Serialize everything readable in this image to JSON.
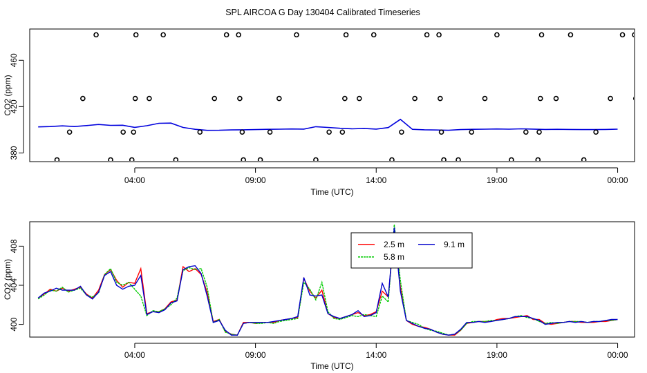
{
  "title": "SPL AIRCOA G  Day 130404  Calibrated Timeseries",
  "chart_data": [
    {
      "type": "scatter",
      "xlabel": "Time (UTC)",
      "ylabel": "CO2 (ppm)",
      "x_unit": "hours since 00:00 UTC (axis printed as clock time)",
      "xlim": [
        -0.35,
        24.7
      ],
      "ylim": [
        372.5,
        487
      ],
      "x_ticks": [
        {
          "value": 4,
          "label": "04:00"
        },
        {
          "value": 9,
          "label": "09:00"
        },
        {
          "value": 14,
          "label": "14:00"
        },
        {
          "value": 19,
          "label": "19:00"
        },
        {
          "value": 24,
          "label": "00:00"
        }
      ],
      "y_ticks": [
        380,
        420,
        460
      ],
      "points": [
        [
          0.78,
          374
        ],
        [
          1.3,
          398
        ],
        [
          1.85,
          427
        ],
        [
          2.4,
          482
        ],
        [
          3.0,
          374
        ],
        [
          3.52,
          398
        ],
        [
          3.88,
          374
        ],
        [
          3.95,
          398
        ],
        [
          4.02,
          427
        ],
        [
          4.05,
          482
        ],
        [
          4.6,
          427
        ],
        [
          5.18,
          482
        ],
        [
          5.7,
          374
        ],
        [
          6.7,
          398
        ],
        [
          7.3,
          427
        ],
        [
          7.8,
          482
        ],
        [
          8.3,
          482
        ],
        [
          8.35,
          427
        ],
        [
          8.45,
          398
        ],
        [
          8.5,
          374
        ],
        [
          9.2,
          374
        ],
        [
          9.6,
          398
        ],
        [
          9.98,
          427
        ],
        [
          10.7,
          482
        ],
        [
          11.5,
          374
        ],
        [
          12.05,
          398
        ],
        [
          12.6,
          398
        ],
        [
          12.7,
          427
        ],
        [
          12.75,
          482
        ],
        [
          13.3,
          427
        ],
        [
          13.9,
          482
        ],
        [
          14.65,
          374
        ],
        [
          15.05,
          398
        ],
        [
          15.6,
          427
        ],
        [
          16.1,
          482
        ],
        [
          16.6,
          482
        ],
        [
          16.65,
          427
        ],
        [
          16.7,
          398
        ],
        [
          16.8,
          374
        ],
        [
          17.4,
          374
        ],
        [
          17.95,
          398
        ],
        [
          18.5,
          427
        ],
        [
          19.0,
          482
        ],
        [
          19.6,
          374
        ],
        [
          20.2,
          398
        ],
        [
          20.7,
          374
        ],
        [
          20.75,
          398
        ],
        [
          20.8,
          427
        ],
        [
          20.85,
          482
        ],
        [
          21.45,
          427
        ],
        [
          22.05,
          482
        ],
        [
          22.6,
          374
        ],
        [
          23.1,
          398
        ],
        [
          23.7,
          427
        ],
        [
          24.2,
          482
        ],
        [
          24.7,
          482
        ],
        [
          24.75,
          427
        ],
        [
          24.8,
          398
        ],
        [
          24.85,
          374
        ]
      ],
      "line": {
        "x": [
          0,
          0.5,
          1,
          1.5,
          2,
          2.5,
          3,
          3.5,
          4,
          4.5,
          5,
          5.5,
          6,
          6.5,
          7,
          7.5,
          8,
          8.5,
          9,
          9.5,
          10,
          10.5,
          11,
          11.5,
          12,
          12.5,
          13,
          13.5,
          14,
          14.5,
          15,
          15.5,
          16,
          16.5,
          17,
          17.5,
          18,
          18.5,
          19,
          19.5,
          20,
          20.5,
          21,
          21.5,
          22,
          22.5,
          23,
          23.5,
          24
        ],
        "y": [
          402.5,
          402.8,
          403.4,
          402.8,
          403.6,
          404.6,
          403.8,
          403.9,
          402.1,
          403.5,
          405.6,
          405.8,
          402,
          400.4,
          399.5,
          399.6,
          399.9,
          400,
          400.2,
          400.4,
          400.5,
          400.7,
          400.6,
          402.7,
          402,
          401.3,
          400.8,
          401.2,
          400.6,
          401.9,
          409,
          400.4,
          400,
          399.8,
          399.6,
          400.2,
          400.4,
          400.5,
          400.7,
          400.5,
          400.8,
          400.6,
          400.3,
          400.4,
          400.3,
          400.2,
          400.2,
          400.3,
          400.5
        ]
      }
    },
    {
      "type": "line",
      "xlabel": "Time (UTC)",
      "ylabel": "CO2 (ppm)",
      "xlim": [
        -0.35,
        24.7
      ],
      "ylim": [
        398.7,
        410.5
      ],
      "x_ticks": [
        {
          "value": 4,
          "label": "04:00"
        },
        {
          "value": 9,
          "label": "09:00"
        },
        {
          "value": 14,
          "label": "14:00"
        },
        {
          "value": 19,
          "label": "19:00"
        },
        {
          "value": 24,
          "label": "00:00"
        }
      ],
      "y_ticks": [
        400,
        404,
        408
      ],
      "legend_position": "top-center",
      "x": [
        0,
        0.25,
        0.5,
        0.75,
        1,
        1.25,
        1.5,
        1.75,
        2,
        2.25,
        2.5,
        2.75,
        3,
        3.25,
        3.5,
        3.75,
        4,
        4.25,
        4.5,
        4.75,
        5,
        5.25,
        5.5,
        5.75,
        6,
        6.25,
        6.5,
        6.75,
        7,
        7.25,
        7.5,
        7.75,
        8,
        8.25,
        8.5,
        8.75,
        9,
        9.25,
        9.5,
        9.75,
        10,
        10.25,
        10.5,
        10.75,
        11,
        11.25,
        11.5,
        11.75,
        12,
        12.25,
        12.5,
        12.75,
        13,
        13.25,
        13.5,
        13.75,
        14,
        14.25,
        14.5,
        14.75,
        15,
        15.25,
        15.5,
        15.75,
        16,
        16.25,
        16.5,
        16.75,
        17,
        17.25,
        17.5,
        17.75,
        18,
        18.25,
        18.5,
        18.75,
        19,
        19.25,
        19.5,
        19.75,
        20,
        20.25,
        20.5,
        20.75,
        21,
        21.25,
        21.5,
        21.75,
        22,
        22.25,
        22.5,
        22.75,
        23,
        23.25,
        23.5,
        23.75,
        24
      ],
      "series": [
        {
          "name": "2.5 m",
          "color": "#ff0000",
          "values": [
            402.7,
            403.1,
            403.6,
            403.4,
            403.7,
            403.4,
            403.6,
            403.8,
            403.1,
            402.7,
            403.5,
            405.1,
            405.6,
            404.5,
            403.8,
            404.3,
            404.2,
            405.7,
            401.1,
            401.3,
            401.3,
            401.6,
            402.3,
            402.5,
            405.9,
            405.4,
            405.7,
            405.1,
            403.3,
            400.3,
            400.5,
            399.3,
            399.0,
            398.9,
            400.2,
            400.2,
            400.1,
            400.2,
            400.2,
            400.2,
            400.4,
            400.5,
            400.6,
            400.7,
            404.7,
            403.4,
            402.7,
            403.5,
            401.1,
            400.7,
            400.6,
            400.8,
            401.0,
            401.2,
            400.9,
            401.0,
            401.3,
            403.4,
            402.8,
            409.4,
            403.8,
            400.4,
            400.0,
            399.8,
            399.7,
            399.5,
            399.2,
            399.0,
            398.9,
            398.9,
            399.4,
            400.1,
            400.2,
            400.3,
            400.3,
            400.3,
            400.5,
            400.6,
            400.6,
            400.7,
            400.8,
            400.9,
            400.5,
            400.5,
            400.1,
            400.0,
            400.1,
            400.2,
            400.3,
            400.3,
            400.2,
            400.2,
            400.2,
            400.3,
            400.3,
            400.4,
            400.5
          ]
        },
        {
          "name": "5.8 m",
          "color": "#00cc00",
          "values": [
            402.6,
            403.0,
            403.5,
            403.4,
            403.8,
            403.3,
            403.5,
            403.7,
            403.0,
            402.8,
            403.2,
            405.1,
            405.7,
            404.3,
            404.0,
            404.3,
            403.6,
            402.9,
            400.9,
            401.4,
            401.3,
            401.6,
            402.0,
            402.7,
            405.5,
            405.8,
            405.6,
            405.7,
            403.8,
            400.2,
            400.5,
            399.2,
            399.0,
            398.9,
            400.1,
            400.2,
            400.1,
            400.1,
            400.2,
            400.1,
            400.3,
            400.4,
            400.5,
            400.6,
            404.3,
            403.6,
            402.5,
            404.3,
            401.3,
            400.6,
            400.5,
            400.7,
            400.9,
            400.8,
            401.0,
            400.9,
            400.8,
            402.9,
            402.3,
            410.2,
            404.5,
            400.4,
            400.2,
            400.0,
            399.6,
            399.4,
            399.3,
            399.1,
            398.9,
            399.0,
            399.4,
            400.1,
            400.3,
            400.3,
            400.3,
            400.4,
            400.4,
            400.5,
            400.6,
            400.8,
            400.9,
            400.7,
            400.6,
            400.3,
            400.1,
            400.2,
            400.1,
            400.2,
            400.3,
            400.3,
            400.3,
            400.2,
            400.3,
            400.3,
            400.4,
            400.4,
            400.5
          ]
        },
        {
          "name": "9.1 m",
          "color": "#0000cc",
          "values": [
            402.7,
            403.2,
            403.4,
            403.7,
            403.5,
            403.5,
            403.5,
            403.9,
            403.0,
            402.6,
            403.3,
            405.0,
            405.4,
            404.0,
            403.6,
            403.9,
            404.0,
            405.0,
            401.0,
            401.3,
            401.2,
            401.5,
            402.2,
            402.4,
            405.6,
            405.9,
            406.0,
            405.2,
            402.9,
            400.2,
            400.4,
            399.4,
            398.9,
            398.9,
            400.1,
            400.2,
            400.2,
            400.2,
            400.2,
            400.3,
            400.4,
            400.5,
            400.6,
            400.8,
            404.8,
            403.0,
            402.9,
            403.0,
            401.1,
            400.8,
            400.6,
            400.8,
            401.0,
            401.4,
            400.8,
            400.9,
            401.2,
            404.2,
            402.8,
            409.9,
            403.4,
            400.4,
            400.1,
            399.8,
            399.6,
            399.5,
            399.2,
            399.0,
            398.9,
            399.0,
            399.5,
            400.2,
            400.2,
            400.3,
            400.2,
            400.3,
            400.4,
            400.5,
            400.6,
            400.8,
            400.8,
            400.8,
            400.6,
            400.4,
            400.0,
            400.1,
            400.2,
            400.2,
            400.3,
            400.2,
            400.3,
            400.2,
            400.3,
            400.3,
            400.4,
            400.5,
            400.5
          ]
        }
      ]
    }
  ]
}
